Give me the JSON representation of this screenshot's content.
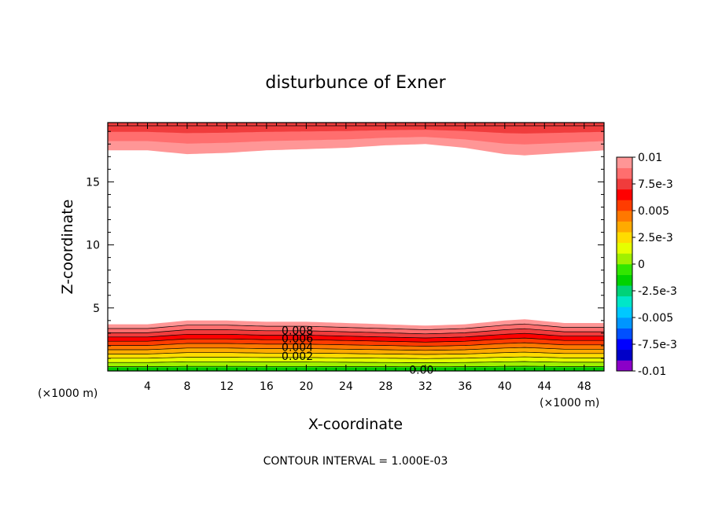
{
  "chart_data": {
    "type": "heatmap",
    "title": "disturbunce of Exner",
    "xlabel": "X-coordinate",
    "ylabel": "Z-coordinate",
    "x_unit_left": "(×1000 m)",
    "x_unit_right": "(×1000 m)",
    "xlim": [
      0,
      50
    ],
    "ylim": [
      0,
      19.7
    ],
    "x_ticks": [
      4,
      8,
      12,
      16,
      20,
      24,
      28,
      32,
      36,
      40,
      44,
      48
    ],
    "y_ticks": [
      5,
      10,
      15
    ],
    "footer": "CONTOUR INTERVAL = 1.000E-03",
    "contour_labels": [
      "0.008",
      "0.006",
      "0.004",
      "0.002",
      "0.00"
    ],
    "colorbar": {
      "tick_labels": [
        "0.01",
        "7.5e-3",
        "0.005",
        "2.5e-3",
        "0",
        "-2.5e-3",
        "-0.005",
        "-7.5e-3",
        "-0.01"
      ],
      "colors": [
        "#8b00c8",
        "#0000c8",
        "#0000ff",
        "#0050ff",
        "#0096ff",
        "#00c8ff",
        "#00e6c8",
        "#00d278",
        "#00d200",
        "#32e600",
        "#a0f000",
        "#e6ff00",
        "#ffdc00",
        "#ffaa00",
        "#ff7800",
        "#ff3c00",
        "#ff0000",
        "#f03c3c",
        "#ff6e6e",
        "#ff9696"
      ]
    },
    "bottom_layer": {
      "z_top_profile": [
        [
          0,
          3.7
        ],
        [
          4,
          3.7
        ],
        [
          8,
          4.0
        ],
        [
          12,
          4.0
        ],
        [
          16,
          3.9
        ],
        [
          20,
          3.9
        ],
        [
          24,
          3.8
        ],
        [
          28,
          3.7
        ],
        [
          32,
          3.6
        ],
        [
          36,
          3.7
        ],
        [
          40,
          4.0
        ],
        [
          42,
          4.1
        ],
        [
          46,
          3.8
        ],
        [
          50,
          3.8
        ]
      ],
      "contour_values": [
        0.008,
        0.006,
        0.004,
        0.002,
        0.0
      ]
    },
    "top_layer": {
      "z_bottom_profile": [
        [
          0,
          17.5
        ],
        [
          4,
          17.5
        ],
        [
          8,
          17.2
        ],
        [
          12,
          17.3
        ],
        [
          16,
          17.5
        ],
        [
          20,
          17.6
        ],
        [
          24,
          17.7
        ],
        [
          28,
          17.9
        ],
        [
          32,
          18.0
        ],
        [
          36,
          17.7
        ],
        [
          40,
          17.2
        ],
        [
          42,
          17.1
        ],
        [
          46,
          17.3
        ],
        [
          50,
          17.5
        ]
      ]
    }
  }
}
